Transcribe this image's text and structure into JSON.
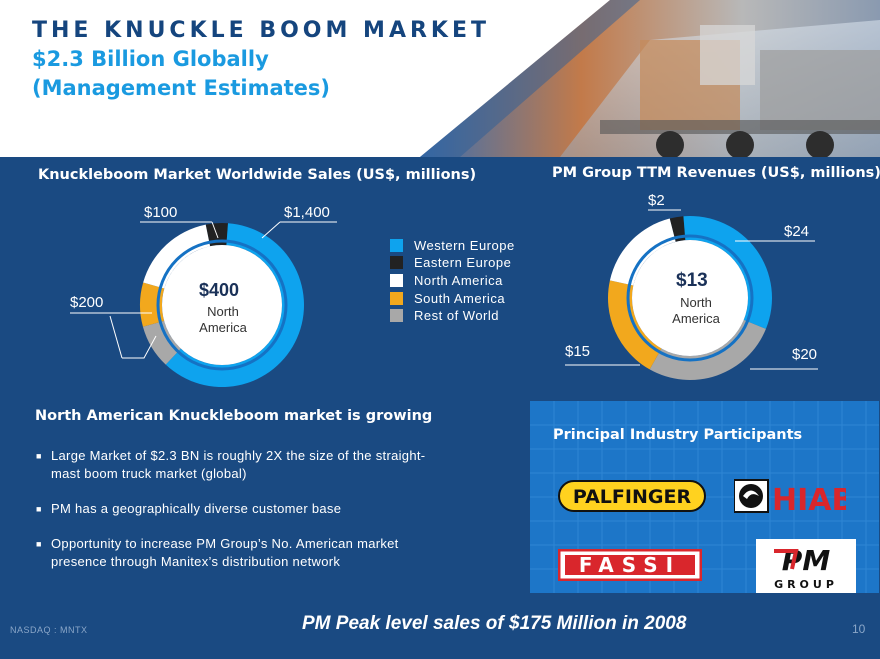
{
  "header": {
    "title": "THE KNUCKLE BOOM MARKET",
    "subtitle_line1": "$2.3 Billion Globally",
    "subtitle_line2": "(Management Estimates)"
  },
  "chart_data": [
    {
      "type": "pie",
      "title": "Knuckleboom Market Worldwide Sales (US$, millions)",
      "categories": [
        "Western Europe",
        "Eastern Europe",
        "North America",
        "South America",
        "Rest of World"
      ],
      "values": [
        1400,
        100,
        400,
        200,
        200
      ],
      "value_labels": [
        "$1,400",
        "$100",
        "$400",
        "$200",
        ""
      ],
      "center_value": "$400",
      "center_label": "North America",
      "colors": [
        "#0ea3ee",
        "#222222",
        "#ffffff",
        "#f2a81d",
        "#a8a8a8"
      ],
      "legend_position": "right"
    },
    {
      "type": "pie",
      "title": "PM Group TTM Revenues (US$, millions)",
      "categories": [
        "Western Europe",
        "Eastern Europe",
        "North America",
        "South America",
        "Rest of World"
      ],
      "values": [
        24,
        2,
        13,
        15,
        20
      ],
      "value_labels": [
        "$24",
        "$2",
        "$13",
        "$15",
        "$20"
      ],
      "center_value": "$13",
      "center_label": "North America",
      "colors": [
        "#0ea3ee",
        "#222222",
        "#ffffff",
        "#f2a81d",
        "#a8a8a8"
      ]
    }
  ],
  "legend": [
    {
      "label": "Western Europe",
      "color": "#0ea3ee"
    },
    {
      "label": "Eastern Europe",
      "color": "#222222"
    },
    {
      "label": "North America",
      "color": "#ffffff"
    },
    {
      "label": "South America",
      "color": "#f2a81d"
    },
    {
      "label": "Rest of World",
      "color": "#a8a8a8"
    }
  ],
  "growth": {
    "heading": "North American Knuckleboom market is growing",
    "bullets": [
      "Large Market of $2.3 BN is roughly 2X the size of the straight-mast boom truck market (global)",
      "PM has a geographically diverse customer base",
      "Opportunity to increase PM Group’s No. American market presence through Manitex’s distribution network"
    ]
  },
  "participants": {
    "title": "Principal Industry Participants",
    "logos": [
      "PALFINGER",
      "HIAB",
      "FASSI",
      "PM",
      "GROUP"
    ]
  },
  "footer": {
    "ticker": "NASDAQ : MNTX",
    "tagline": "PM Peak level sales of $175 Million in 2008",
    "page_number": "10"
  }
}
